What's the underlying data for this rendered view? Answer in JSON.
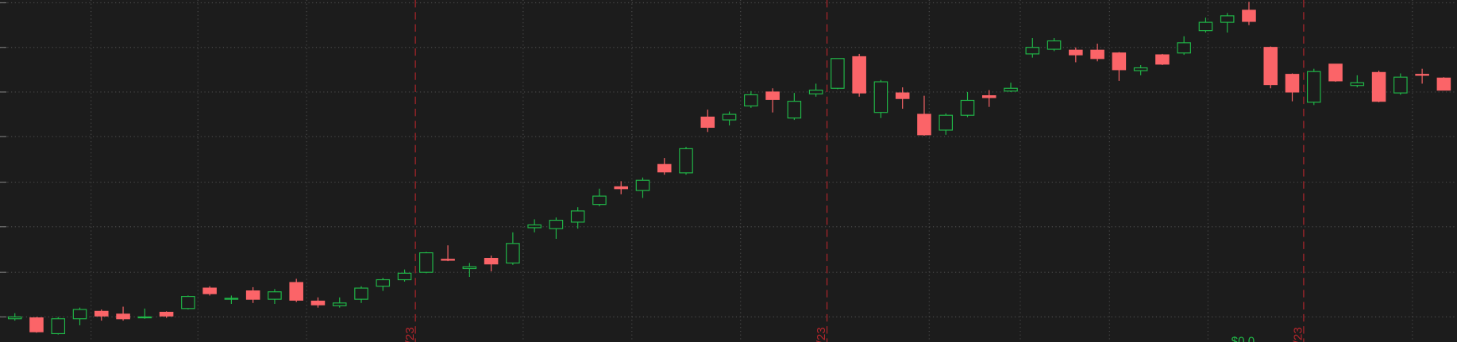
{
  "chart_data": {
    "type": "candlestick",
    "categories": [
      null,
      null,
      null,
      null,
      null,
      null,
      null,
      null,
      null,
      null,
      null,
      null,
      null,
      null,
      null,
      null,
      null,
      null,
      null,
      null,
      null,
      null,
      null,
      null,
      null,
      null,
      null,
      null,
      null,
      null,
      null,
      null,
      null,
      null,
      null,
      null,
      null,
      null,
      null,
      null,
      null,
      null,
      null,
      null,
      null,
      null,
      null,
      null,
      null,
      null,
      null,
      null,
      null,
      null,
      null,
      null,
      null,
      null,
      null,
      null,
      null,
      null,
      null,
      null,
      null,
      null,
      null
    ],
    "open": [
      25,
      26,
      9,
      25,
      33,
      30,
      26,
      32,
      36,
      58,
      46,
      55,
      46,
      64,
      44,
      39,
      46,
      60,
      67,
      75,
      89,
      79,
      90,
      85,
      123,
      122,
      129,
      148,
      167,
      163,
      191,
      182,
      242,
      239,
      254,
      269,
      241,
      267,
      273,
      307,
      247,
      268,
      245,
      228,
      244,
      265,
      270,
      310,
      315,
      314,
      314,
      311,
      292,
      309,
      311,
      335,
      344,
      357,
      317,
      288,
      258,
      299,
      276,
      290,
      268,
      288,
      284
    ],
    "high": [
      31,
      27,
      27,
      37,
      35,
      38,
      36,
      33,
      50,
      60,
      50,
      59,
      57,
      68,
      48,
      48,
      60,
      69,
      78,
      97,
      104,
      85,
      93,
      118,
      132,
      134,
      145,
      165,
      173,
      177,
      198,
      210,
      250,
      248,
      270,
      273,
      268,
      278,
      305,
      310,
      282,
      274,
      265,
      246,
      269,
      271,
      279,
      327,
      327,
      317,
      321,
      312,
      298,
      310,
      329,
      349,
      354,
      366,
      318,
      289,
      294,
      299,
      287,
      292,
      289,
      294,
      285
    ],
    "low": [
      23,
      10,
      8,
      18,
      23,
      23,
      25,
      26,
      35,
      50,
      41,
      42,
      41,
      43,
      37,
      37,
      42,
      55,
      65,
      74,
      87,
      70,
      76,
      83,
      118,
      111,
      122,
      146,
      159,
      155,
      180,
      180,
      226,
      233,
      252,
      247,
      239,
      264,
      272,
      264,
      241,
      251,
      222,
      223,
      242,
      253,
      269,
      306,
      313,
      301,
      302,
      281,
      287,
      298,
      309,
      333,
      333,
      341,
      273,
      259,
      255,
      280,
      274,
      258,
      266,
      278,
      271
    ],
    "close": [
      27,
      11,
      25,
      35,
      28,
      25,
      27,
      28,
      49,
      52,
      47,
      46,
      54,
      45,
      40,
      42,
      58,
      67,
      74,
      96,
      88,
      81,
      84,
      106,
      126,
      131,
      141,
      157,
      165,
      174,
      183,
      208,
      231,
      245,
      266,
      261,
      259,
      271,
      305,
      268,
      280,
      262,
      223,
      244,
      260,
      263,
      273,
      317,
      324,
      309,
      305,
      293,
      295,
      299,
      322,
      344,
      351,
      345,
      277,
      269,
      291,
      281,
      279,
      259,
      285,
      287,
      271
    ],
    "up_color": "#20b848",
    "down_color": "#fb6468",
    "ylim": [
      0,
      368
    ],
    "yticks": [
      27,
      75,
      124,
      172,
      221,
      269,
      317,
      365
    ],
    "grid": true,
    "date_labels": [
      "/23",
      "/23",
      "/23"
    ],
    "price_label": "$0.0"
  }
}
